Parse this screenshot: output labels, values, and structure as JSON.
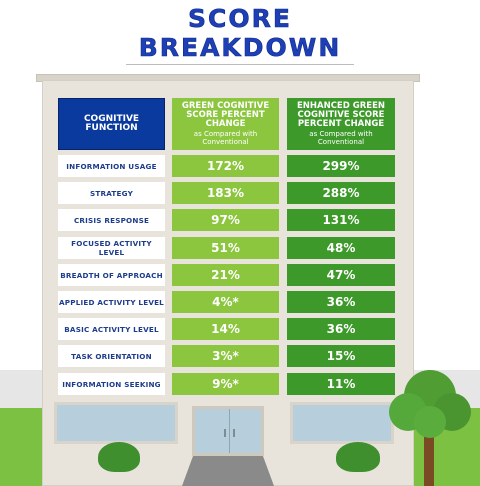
{
  "title": {
    "line1": "SCORE",
    "line2": "BREAKDOWN"
  },
  "columns": {
    "c0": {
      "label": "COGNITIVE FUNCTION"
    },
    "c1": {
      "label": "GREEN COGNITIVE SCORE PERCENT CHANGE",
      "note": "as Compared with Conventional"
    },
    "c2": {
      "label": "ENHANCED GREEN COGNITIVE SCORE PERCENT CHANGE",
      "note": "as Compared with Conventional"
    }
  },
  "rows": [
    {
      "label": "INFORMATION USAGE",
      "green": "172%",
      "enhanced": "299%"
    },
    {
      "label": "STRATEGY",
      "green": "183%",
      "enhanced": "288%"
    },
    {
      "label": "CRISIS RESPONSE",
      "green": "97%",
      "enhanced": "131%"
    },
    {
      "label": "FOCUSED ACTIVITY LEVEL",
      "green": "51%",
      "enhanced": "48%"
    },
    {
      "label": "BREADTH OF APPROACH",
      "green": "21%",
      "enhanced": "47%"
    },
    {
      "label": "APPLIED ACTIVITY LEVEL",
      "green": "4%*",
      "enhanced": "36%"
    },
    {
      "label": "BASIC ACTIVITY LEVEL",
      "green": "14%",
      "enhanced": "36%"
    },
    {
      "label": "TASK ORIENTATION",
      "green": "3%*",
      "enhanced": "15%"
    },
    {
      "label": "INFORMATION SEEKING",
      "green": "9%*",
      "enhanced": "11%"
    }
  ],
  "colors": {
    "header_blue": "#0a3a9e",
    "green": "#8cc63f",
    "enhanced_green": "#3d9a2a",
    "title_blue": "#1f3fb5"
  },
  "chart_data": {
    "type": "table",
    "title": "SCORE BREAKDOWN",
    "columns": [
      "COGNITIVE FUNCTION",
      "GREEN COGNITIVE SCORE PERCENT CHANGE as Compared with Conventional",
      "ENHANCED GREEN COGNITIVE SCORE PERCENT CHANGE as Compared with Conventional"
    ],
    "categories": [
      "INFORMATION USAGE",
      "STRATEGY",
      "CRISIS RESPONSE",
      "FOCUSED ACTIVITY LEVEL",
      "BREADTH OF APPROACH",
      "APPLIED ACTIVITY LEVEL",
      "BASIC ACTIVITY LEVEL",
      "TASK ORIENTATION",
      "INFORMATION SEEKING"
    ],
    "series": [
      {
        "name": "GREEN COGNITIVE SCORE PERCENT CHANGE",
        "values": [
          172,
          183,
          97,
          51,
          21,
          4,
          14,
          3,
          9
        ]
      },
      {
        "name": "ENHANCED GREEN COGNITIVE SCORE PERCENT CHANGE",
        "values": [
          299,
          288,
          131,
          48,
          47,
          36,
          36,
          15,
          11
        ]
      }
    ]
  }
}
